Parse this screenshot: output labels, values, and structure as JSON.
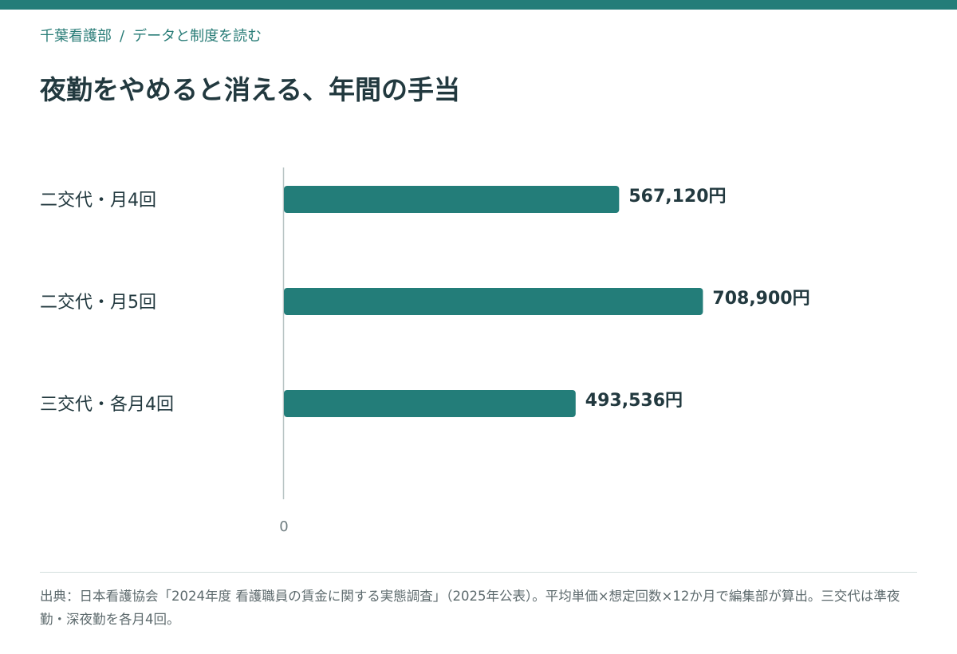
{
  "header": {
    "breadcrumb": {
      "site": "千葉看護部",
      "separator": "/",
      "section": "データと制度を読む"
    },
    "title": "夜勤をやめると消える、年間の手当"
  },
  "colors": {
    "accent": "#237d79",
    "bar": "#237d79",
    "text": "#22393f",
    "muted": "#6f7d80"
  },
  "chart_data": {
    "type": "bar",
    "orientation": "horizontal",
    "categories": [
      "二交代・月4回",
      "二交代・月5回",
      "三交代・各月4回"
    ],
    "values": [
      567120,
      708900,
      493536
    ],
    "value_labels": [
      "567,120円",
      "708,900円",
      "493,536円"
    ],
    "xlim": [
      0,
      850000
    ],
    "x_ticks": [
      0
    ],
    "x_tick_labels": [
      "0"
    ],
    "grid": false,
    "legend": "none"
  },
  "footnote": "出典：日本看護協会「2024年度 看護職員の賃金に関する実態調査」（2025年公表）。平均単価×想定回数×12か月で編集部が算出。三交代は準夜勤・深夜勤を各月4回。"
}
